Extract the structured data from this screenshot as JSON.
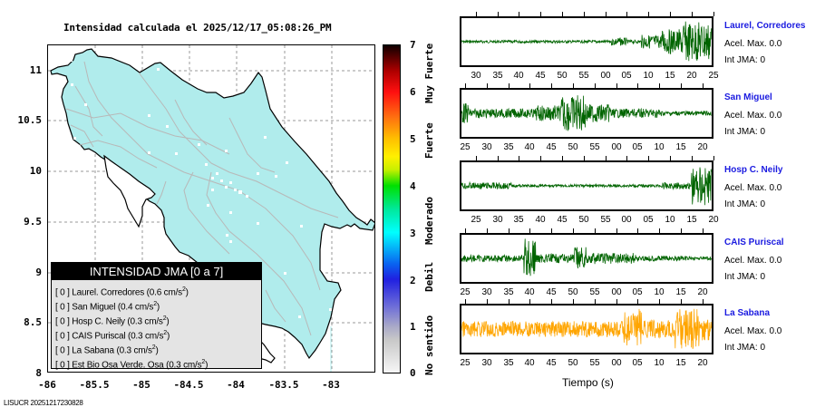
{
  "map": {
    "title": "Intensidad calculada el 2025/12/17_05:08:26_PM",
    "y_ticks": [
      "11",
      "10.5",
      "10",
      "9.5",
      "9",
      "8.5",
      "8"
    ],
    "x_ticks": [
      "-86",
      "-85.5",
      "-85",
      "-84.5",
      "-84",
      "-83.5",
      "-83"
    ],
    "land_color": "#b0ecec",
    "legend": {
      "title": "INTENSIDAD JMA [0 a 7]",
      "rows": [
        {
          "level": "[ 0 ]",
          "text": "Laurel. Corredores (0.6 cm/s",
          "sup": "2",
          "end": ")"
        },
        {
          "level": "[ 0 ]",
          "text": "San Miguel (0.4 cm/s",
          "sup": "2",
          "end": ")"
        },
        {
          "level": "[ 0 ]",
          "text": "Hosp C. Neily (0.3 cm/s",
          "sup": "2",
          "end": ")"
        },
        {
          "level": "[ 0 ]",
          "text": "CAIS Puriscal (0.3 cm/s",
          "sup": "2",
          "end": ")"
        },
        {
          "level": "[ 0 ]",
          "text": "La Sabana (0.3 cm/s",
          "sup": "2",
          "end": ")"
        },
        {
          "level": "[ 0 ]",
          "text": "Est Bio Osa Verde. Osa (0.3 cm/s",
          "sup": "2",
          "end": ")"
        }
      ]
    }
  },
  "colorbar": {
    "ticks": [
      "7",
      "6",
      "5",
      "4",
      "3",
      "2",
      "1",
      "0"
    ],
    "labels": [
      "Muy Fuerte",
      "Fuerte",
      "Moderado",
      "Debil",
      "No sentido"
    ]
  },
  "footer": {
    "id": "LISUCR 20251217230828"
  },
  "traces": {
    "xlabel": "Tiempo (s)",
    "stations": [
      {
        "name": "Laurel, Corredores",
        "acel": "Acel. Max. 0.0",
        "int": "Int JMA: 0",
        "color": "#006400",
        "ticks": [
          "30",
          "35",
          "40",
          "45",
          "50",
          "55",
          "00",
          "05",
          "10",
          "15",
          "20",
          "25"
        ],
        "offset": 0.5
      },
      {
        "name": "San Miguel",
        "acel": "Acel. Max. 0.0",
        "int": "Int JMA: 0",
        "color": "#006400",
        "ticks": [
          "25",
          "30",
          "35",
          "40",
          "45",
          "50",
          "55",
          "00",
          "05",
          "10",
          "15",
          "20"
        ],
        "offset": 0
      },
      {
        "name": "Hosp C. Neily",
        "acel": "Acel. Max. 0.0",
        "int": "Int JMA: 0",
        "color": "#006400",
        "ticks": [
          "25",
          "30",
          "35",
          "40",
          "45",
          "50",
          "55",
          "00",
          "05",
          "10",
          "15",
          "20"
        ],
        "offset": 0.5
      },
      {
        "name": "CAIS Puriscal",
        "acel": "Acel. Max. 0.0",
        "int": "Int JMA: 0",
        "color": "#006400",
        "ticks": [
          "25",
          "30",
          "35",
          "40",
          "45",
          "50",
          "55",
          "00",
          "05",
          "10",
          "15",
          "20"
        ],
        "offset": 0
      },
      {
        "name": "La Sabana",
        "acel": "Acel. Max. 0.0",
        "int": "Int JMA: 0",
        "color": "#ffa500",
        "ticks": [
          "25",
          "30",
          "35",
          "40",
          "45",
          "50",
          "55",
          "00",
          "05",
          "10",
          "15",
          "20"
        ],
        "offset": 0
      }
    ]
  }
}
